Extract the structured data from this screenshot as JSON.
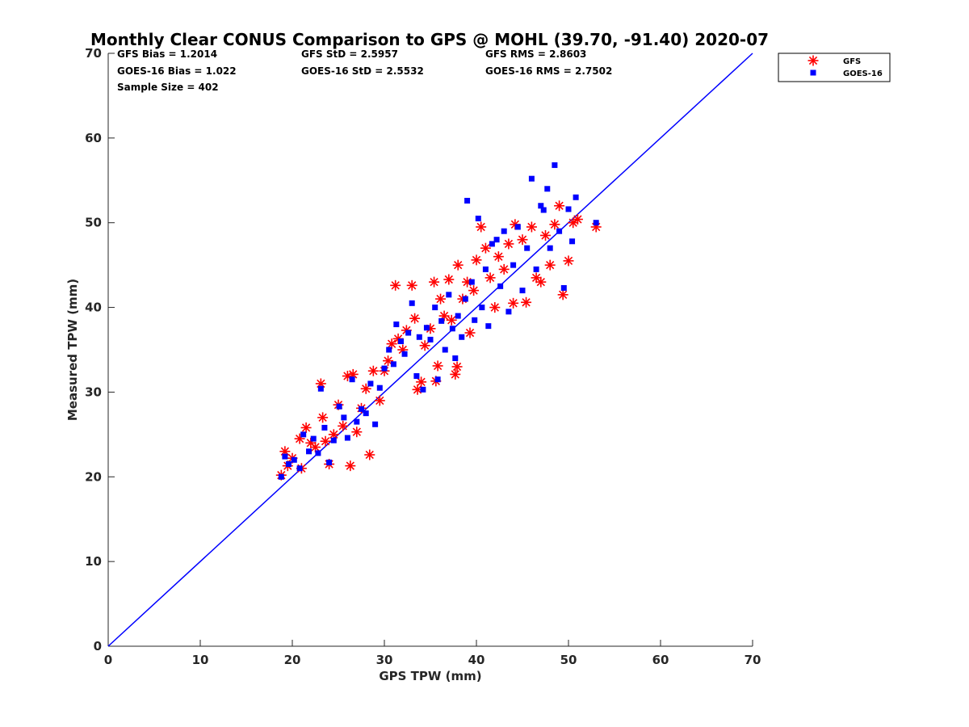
{
  "chart_data": {
    "type": "scatter",
    "title": "Monthly Clear CONUS Comparison to GPS @ MOHL (39.70, -91.40) 2020-07",
    "xlabel": "GPS TPW (mm)",
    "ylabel": "Measured TPW (mm)",
    "xlim": [
      0,
      70
    ],
    "ylim": [
      0,
      70
    ],
    "xticks": [
      "0",
      "10",
      "20",
      "30",
      "40",
      "50",
      "60",
      "70"
    ],
    "yticks": [
      "0",
      "10",
      "20",
      "30",
      "40",
      "50",
      "60",
      "70"
    ],
    "legend_position": "top-right (outside axes)",
    "stats": {
      "gfs_bias": "GFS Bias = 1.2014",
      "gfs_std": "GFS StD = 2.5957",
      "gfs_rms": "GFS RMS = 2.8603",
      "goes_bias": "GOES-16 Bias = 1.022",
      "goes_std": "GOES-16 StD = 2.5532",
      "goes_rms": "GOES-16 RMS = 2.7502",
      "sample_size": "Sample Size = 402"
    },
    "reference_line": {
      "x": [
        0,
        70
      ],
      "y": [
        0,
        70
      ],
      "color": "#0000ff"
    },
    "series": [
      {
        "name": "GFS",
        "marker": "asterisk",
        "color": "#ff0000",
        "points": [
          [
            18.8,
            20.2
          ],
          [
            19.2,
            23.0
          ],
          [
            19.5,
            21.3
          ],
          [
            20.0,
            22.2
          ],
          [
            20.8,
            24.5
          ],
          [
            21.0,
            21.0
          ],
          [
            21.5,
            25.8
          ],
          [
            22.0,
            24.0
          ],
          [
            22.5,
            23.5
          ],
          [
            23.1,
            31.0
          ],
          [
            23.3,
            27.0
          ],
          [
            23.6,
            24.2
          ],
          [
            24.0,
            21.5
          ],
          [
            24.5,
            25.0
          ],
          [
            25.0,
            28.5
          ],
          [
            25.5,
            26.0
          ],
          [
            26.0,
            31.9
          ],
          [
            26.3,
            21.3
          ],
          [
            26.6,
            32.1
          ],
          [
            27.0,
            25.3
          ],
          [
            27.5,
            28.1
          ],
          [
            28.0,
            30.4
          ],
          [
            28.4,
            22.6
          ],
          [
            28.8,
            32.5
          ],
          [
            29.5,
            29.0
          ],
          [
            30.0,
            32.5
          ],
          [
            30.4,
            33.7
          ],
          [
            30.8,
            35.7
          ],
          [
            31.2,
            42.6
          ],
          [
            31.5,
            36.3
          ],
          [
            32.0,
            35.0
          ],
          [
            32.4,
            37.3
          ],
          [
            33.0,
            42.6
          ],
          [
            33.3,
            38.7
          ],
          [
            33.6,
            30.3
          ],
          [
            34.0,
            31.2
          ],
          [
            34.4,
            35.5
          ],
          [
            35.0,
            37.5
          ],
          [
            35.4,
            43.0
          ],
          [
            35.6,
            31.3
          ],
          [
            35.8,
            33.1
          ],
          [
            36.1,
            41.0
          ],
          [
            36.5,
            39.0
          ],
          [
            37.0,
            43.3
          ],
          [
            37.3,
            38.5
          ],
          [
            37.7,
            32.1
          ],
          [
            37.9,
            33.0
          ],
          [
            38.0,
            45.0
          ],
          [
            38.5,
            41.0
          ],
          [
            39.0,
            43.0
          ],
          [
            39.3,
            37.0
          ],
          [
            39.7,
            42.0
          ],
          [
            40.0,
            45.6
          ],
          [
            40.5,
            49.5
          ],
          [
            41.0,
            47.0
          ],
          [
            41.5,
            43.5
          ],
          [
            42.0,
            40.0
          ],
          [
            42.4,
            46.0
          ],
          [
            43.0,
            44.5
          ],
          [
            43.5,
            47.5
          ],
          [
            44.0,
            40.5
          ],
          [
            44.2,
            49.8
          ],
          [
            45.0,
            48.0
          ],
          [
            45.4,
            40.6
          ],
          [
            46.0,
            49.5
          ],
          [
            46.5,
            43.5
          ],
          [
            47.0,
            43.0
          ],
          [
            47.5,
            48.5
          ],
          [
            48.0,
            45.0
          ],
          [
            48.5,
            49.8
          ],
          [
            49.0,
            52.0
          ],
          [
            49.4,
            41.5
          ],
          [
            50.0,
            45.5
          ],
          [
            50.5,
            50.0
          ],
          [
            51.0,
            50.4
          ],
          [
            53.0,
            49.5
          ]
        ]
      },
      {
        "name": "GOES-16",
        "marker": "square",
        "color": "#0000ff",
        "points": [
          [
            18.8,
            20.0
          ],
          [
            19.2,
            22.4
          ],
          [
            19.6,
            21.5
          ],
          [
            20.2,
            22.0
          ],
          [
            20.8,
            21.0
          ],
          [
            21.2,
            25.0
          ],
          [
            21.8,
            23.0
          ],
          [
            22.3,
            24.5
          ],
          [
            22.8,
            22.8
          ],
          [
            23.1,
            30.4
          ],
          [
            23.5,
            25.8
          ],
          [
            24.0,
            21.7
          ],
          [
            24.5,
            24.3
          ],
          [
            25.1,
            28.3
          ],
          [
            25.6,
            27.0
          ],
          [
            26.0,
            24.6
          ],
          [
            26.5,
            31.5
          ],
          [
            27.0,
            26.5
          ],
          [
            27.5,
            28.0
          ],
          [
            28.0,
            27.5
          ],
          [
            28.5,
            31.0
          ],
          [
            29.0,
            26.2
          ],
          [
            29.5,
            30.5
          ],
          [
            30.0,
            32.8
          ],
          [
            30.5,
            35.0
          ],
          [
            31.0,
            33.3
          ],
          [
            31.3,
            38.0
          ],
          [
            31.8,
            36.0
          ],
          [
            32.2,
            34.5
          ],
          [
            32.6,
            37.0
          ],
          [
            33.0,
            40.5
          ],
          [
            33.5,
            31.9
          ],
          [
            33.8,
            36.5
          ],
          [
            34.2,
            30.3
          ],
          [
            34.6,
            37.6
          ],
          [
            35.0,
            36.2
          ],
          [
            35.5,
            40.0
          ],
          [
            35.8,
            31.5
          ],
          [
            36.2,
            38.4
          ],
          [
            36.6,
            35.0
          ],
          [
            37.0,
            41.5
          ],
          [
            37.4,
            37.5
          ],
          [
            37.7,
            34.0
          ],
          [
            38.0,
            39.0
          ],
          [
            38.4,
            36.5
          ],
          [
            38.8,
            41.0
          ],
          [
            39.0,
            52.6
          ],
          [
            39.5,
            43.0
          ],
          [
            39.8,
            38.5
          ],
          [
            40.2,
            50.5
          ],
          [
            40.6,
            40.0
          ],
          [
            41.0,
            44.5
          ],
          [
            41.3,
            37.8
          ],
          [
            41.7,
            47.5
          ],
          [
            42.2,
            48.0
          ],
          [
            42.6,
            42.5
          ],
          [
            43.0,
            49.0
          ],
          [
            43.5,
            39.5
          ],
          [
            44.0,
            45.0
          ],
          [
            44.5,
            49.5
          ],
          [
            45.0,
            42.0
          ],
          [
            45.5,
            47.0
          ],
          [
            46.0,
            55.2
          ],
          [
            46.5,
            44.5
          ],
          [
            47.0,
            52.0
          ],
          [
            47.3,
            51.5
          ],
          [
            47.7,
            54.0
          ],
          [
            48.0,
            47.0
          ],
          [
            48.5,
            56.8
          ],
          [
            49.0,
            49.0
          ],
          [
            49.5,
            42.3
          ],
          [
            50.0,
            51.6
          ],
          [
            50.4,
            47.8
          ],
          [
            50.8,
            53.0
          ],
          [
            53.0,
            50.0
          ]
        ]
      }
    ]
  }
}
